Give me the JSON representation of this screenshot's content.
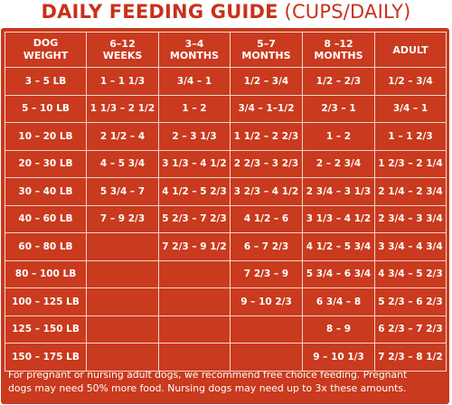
{
  "title": {
    "bold": "DAILY FEEDING GUIDE",
    "light": "(CUPS/DAILY)"
  },
  "headers": [
    [
      "DOG",
      "WEIGHT"
    ],
    [
      "6–12",
      "WEEKS"
    ],
    [
      "3–4",
      "MONTHS"
    ],
    [
      "5–7",
      "MONTHS"
    ],
    [
      "8 –12",
      "MONTHS"
    ],
    [
      "ADULT",
      ""
    ]
  ],
  "rows": [
    [
      "3 – 5 LB",
      "1 – 1 1/3",
      "3/4 – 1",
      "1/2 – 3/4",
      "1/2 – 2/3",
      "1/2 – 3/4"
    ],
    [
      "5 – 10 LB",
      "1 1/3 – 2 1/2",
      "1 – 2",
      "3/4 – 1–1/2",
      "2/3 – 1",
      "3/4 – 1"
    ],
    [
      "10 – 20 LB",
      "2 1/2 – 4",
      "2 – 3 1/3",
      "1 1/2 – 2 2/3",
      "1 – 2",
      "1 – 1 2/3"
    ],
    [
      "20 – 30 LB",
      "4 – 5 3/4",
      "3 1/3 – 4 1/2",
      "2 2/3 – 3 2/3",
      "2 – 2 3/4",
      "1 2/3 – 2 1/4"
    ],
    [
      "30 – 40 LB",
      "5 3/4 – 7",
      "4 1/2 – 5 2/3",
      "3 2/3 – 4 1/2",
      "2 3/4 – 3 1/3",
      "2 1/4 – 2 3/4"
    ],
    [
      "40 – 60 LB",
      "7 – 9 2/3",
      "5 2/3 – 7 2/3",
      "4 1/2 – 6",
      "3 1/3 – 4 1/2",
      "2 3/4 – 3 3/4"
    ],
    [
      "60 – 80 LB",
      "",
      "7 2/3 – 9 1/2",
      "6 – 7 2/3",
      "4 1/2 – 5 3/4",
      "3 3/4 – 4 3/4"
    ],
    [
      "80 – 100 LB",
      "",
      "",
      "7 2/3 – 9",
      "5 3/4 – 6 3/4",
      "4 3/4 – 5 2/3"
    ],
    [
      "100 – 125 LB",
      "",
      "",
      "9 – 10 2/3",
      "6 3/4 – 8",
      "5 2/3 – 6 2/3"
    ],
    [
      "125 – 150 LB",
      "",
      "",
      "",
      "8 – 9",
      "6 2/3 – 7 2/3"
    ],
    [
      "150 – 175 LB",
      "",
      "",
      "",
      "9 – 10 1/3",
      "7 2/3 – 8 1/2"
    ]
  ],
  "footer": {
    "line1": "For pregnant or nursing adult dogs, we recommend free choice feeding. Pregnant",
    "line2": "dogs may need 50% more food. Nursing dogs may need up to 3x these amounts."
  },
  "colors": {
    "panel": "#c93a1e",
    "title": "#c8311c",
    "grid": "#f2d6cc",
    "text": "#ffffff"
  }
}
